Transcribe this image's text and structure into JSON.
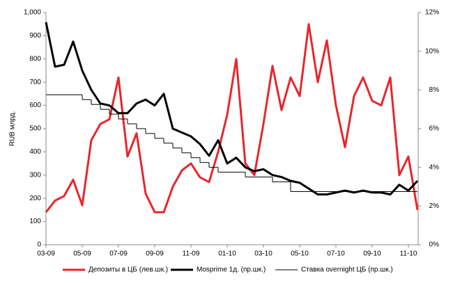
{
  "chart_data": {
    "type": "line",
    "y_label": "RUB млрд.",
    "categories": [
      "03-09",
      null,
      null,
      null,
      "05-09",
      null,
      null,
      null,
      "07-09",
      null,
      null,
      null,
      "09-09",
      null,
      null,
      null,
      "11-09",
      null,
      null,
      null,
      "01-10",
      null,
      null,
      null,
      "03-10",
      null,
      null,
      null,
      "05-10",
      null,
      null,
      null,
      "07-10",
      null,
      null,
      null,
      "09-10",
      null,
      null,
      null,
      "11-10",
      null
    ],
    "series": [
      {
        "name": "Депозиты в ЦБ (лев.шк.)",
        "color": "#e8262b",
        "axis": "y",
        "values": [
          140,
          190,
          210,
          280,
          170,
          450,
          520,
          540,
          720,
          380,
          480,
          220,
          140,
          140,
          250,
          320,
          350,
          290,
          270,
          400,
          560,
          800,
          350,
          300,
          520,
          770,
          580,
          720,
          640,
          950,
          700,
          880,
          600,
          420,
          640,
          720,
          620,
          600,
          720,
          300,
          380,
          150
        ]
      },
      {
        "name": "Mosprime 1д. (пр.шк.)",
        "color": "#000000",
        "axis": "y2",
        "values": [
          11.5,
          9.2,
          9.3,
          10.5,
          9.0,
          8.0,
          7.3,
          7.2,
          6.8,
          6.8,
          7.3,
          7.5,
          7.2,
          7.8,
          6.0,
          5.8,
          5.6,
          5.2,
          4.6,
          5.4,
          4.2,
          4.5,
          4.0,
          3.8,
          3.9,
          3.6,
          3.5,
          3.3,
          3.2,
          2.9,
          2.6,
          2.6,
          2.7,
          2.8,
          2.7,
          2.8,
          2.7,
          2.7,
          2.6,
          3.1,
          2.8,
          3.3
        ]
      },
      {
        "name": "Ставка overnight ЦБ (пр.шк.)",
        "color": "#000000",
        "axis": "y2",
        "step": true,
        "values": [
          7.75,
          7.75,
          7.75,
          7.75,
          7.5,
          7.25,
          7.0,
          6.75,
          6.5,
          6.25,
          6.0,
          5.75,
          5.5,
          5.25,
          5.0,
          4.75,
          4.5,
          4.25,
          4.0,
          3.75,
          3.75,
          3.75,
          3.5,
          3.5,
          3.5,
          3.25,
          3.25,
          2.75,
          2.75,
          2.75,
          2.75,
          2.75,
          2.75,
          2.75,
          2.75,
          2.75,
          2.75,
          2.75,
          2.75,
          2.75,
          2.75,
          2.75
        ]
      }
    ],
    "ylim": [
      0,
      1000
    ],
    "yticks": [
      0,
      100,
      200,
      300,
      400,
      500,
      600,
      700,
      800,
      900,
      {
        "value": 1000,
        "label": "1,000"
      }
    ],
    "y2lim": [
      0,
      12
    ],
    "y2ticks": [
      {
        "value": 0,
        "label": "0%"
      },
      {
        "value": 2,
        "label": "2%"
      },
      {
        "value": 4,
        "label": "4%"
      },
      {
        "value": 6,
        "label": "6%"
      },
      {
        "value": 8,
        "label": "8%"
      },
      {
        "value": 10,
        "label": "10%"
      },
      {
        "value": 12,
        "label": "12%"
      }
    ],
    "grid": false
  }
}
